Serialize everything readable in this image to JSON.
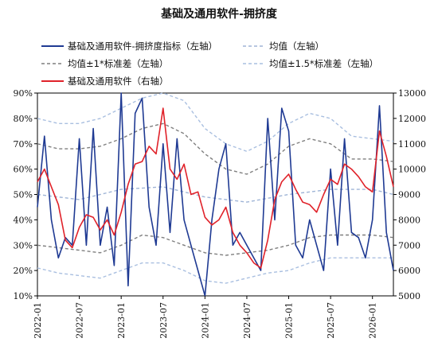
{
  "chart_data": {
    "type": "line",
    "title": "基础及通用软件-拥挤度",
    "xlabel": "",
    "ylabel": "",
    "y_left_lim": [
      0.1,
      0.9
    ],
    "y_left_ticks": [
      "10%",
      "20%",
      "30%",
      "40%",
      "50%",
      "60%",
      "70%",
      "80%",
      "90%"
    ],
    "y_right_lim": [
      5000,
      13000
    ],
    "y_right_ticks": [
      "5000",
      "6000",
      "7000",
      "8000",
      "9000",
      "10000",
      "11000",
      "12000",
      "13000"
    ],
    "x_ticks": [
      "2022-01",
      "2022-07",
      "2023-01",
      "2023-07",
      "2024-01",
      "2024-07",
      "2025-01",
      "2025-07",
      "2026-01"
    ],
    "x_range": [
      "2022-01",
      "2026-04"
    ],
    "grid": false,
    "legend_position": "top",
    "series": [
      {
        "name": "基础及通用软件-拥挤度指标（左轴）",
        "axis": "left",
        "color": "#1f3a93",
        "style": "solid",
        "x": [
          "2022-01",
          "2022-02",
          "2022-03",
          "2022-04",
          "2022-05",
          "2022-06",
          "2022-07",
          "2022-08",
          "2022-09",
          "2022-10",
          "2022-11",
          "2022-12",
          "2023-01",
          "2023-02",
          "2023-03",
          "2023-04",
          "2023-05",
          "2023-06",
          "2023-07",
          "2023-08",
          "2023-09",
          "2023-10",
          "2023-11",
          "2023-12",
          "2024-01",
          "2024-02",
          "2024-03",
          "2024-04",
          "2024-05",
          "2024-06",
          "2024-07",
          "2024-08",
          "2024-09",
          "2024-10",
          "2024-11",
          "2024-12",
          "2025-01",
          "2025-02",
          "2025-03",
          "2025-04",
          "2025-05",
          "2025-06",
          "2025-07",
          "2025-08",
          "2025-09",
          "2025-10",
          "2025-11",
          "2025-12",
          "2026-01",
          "2026-02",
          "2026-03",
          "2026-04"
        ],
        "values": [
          0.45,
          0.73,
          0.4,
          0.25,
          0.33,
          0.3,
          0.72,
          0.3,
          0.76,
          0.3,
          0.45,
          0.22,
          0.9,
          0.14,
          0.82,
          0.88,
          0.45,
          0.3,
          0.7,
          0.35,
          0.72,
          0.4,
          0.3,
          0.2,
          0.1,
          0.4,
          0.6,
          0.7,
          0.3,
          0.35,
          0.3,
          0.25,
          0.2,
          0.8,
          0.4,
          0.84,
          0.75,
          0.3,
          0.25,
          0.4,
          0.3,
          0.2,
          0.6,
          0.3,
          0.72,
          0.35,
          0.33,
          0.25,
          0.4,
          0.85,
          0.35,
          0.2
        ]
      },
      {
        "name": "均值（左轴）",
        "axis": "left",
        "color": "#9fb4d6",
        "style": "dashed",
        "x": [
          "2022-01",
          "2022-07",
          "2023-01",
          "2023-07",
          "2024-01",
          "2024-07",
          "2025-01",
          "2025-07",
          "2026-01",
          "2026-04"
        ],
        "values": [
          0.5,
          0.48,
          0.52,
          0.53,
          0.49,
          0.47,
          0.5,
          0.52,
          0.52,
          0.5
        ]
      },
      {
        "name": "均值±1*标准差（左轴）",
        "axis": "left",
        "color": "#7f7f7f",
        "style": "dashed",
        "x": [
          "2022-01",
          "2022-04",
          "2022-07",
          "2022-10",
          "2023-01",
          "2023-04",
          "2023-07",
          "2023-10",
          "2024-01",
          "2024-04",
          "2024-07",
          "2024-10",
          "2025-01",
          "2025-04",
          "2025-07",
          "2025-10",
          "2026-01",
          "2026-04"
        ],
        "values": [
          0.7,
          0.68,
          0.68,
          0.69,
          0.72,
          0.76,
          0.78,
          0.74,
          0.66,
          0.6,
          0.58,
          0.62,
          0.69,
          0.72,
          0.7,
          0.64,
          0.64,
          0.63
        ],
        "values_lower": [
          0.3,
          0.29,
          0.28,
          0.27,
          0.3,
          0.34,
          0.33,
          0.3,
          0.27,
          0.26,
          0.27,
          0.28,
          0.3,
          0.33,
          0.34,
          0.34,
          0.34,
          0.33
        ]
      },
      {
        "name": "均值±1.5*标准差（左轴）",
        "axis": "left",
        "color": "#a9bfe0",
        "style": "dashed",
        "x": [
          "2022-01",
          "2022-04",
          "2022-07",
          "2022-10",
          "2023-01",
          "2023-04",
          "2023-07",
          "2023-10",
          "2024-01",
          "2024-04",
          "2024-07",
          "2024-10",
          "2025-01",
          "2025-04",
          "2025-07",
          "2025-10",
          "2026-01",
          "2026-04"
        ],
        "values": [
          0.8,
          0.78,
          0.78,
          0.8,
          0.84,
          0.88,
          0.9,
          0.87,
          0.76,
          0.7,
          0.67,
          0.71,
          0.78,
          0.82,
          0.8,
          0.73,
          0.72,
          0.71
        ],
        "values_lower": [
          0.21,
          0.19,
          0.18,
          0.17,
          0.2,
          0.23,
          0.23,
          0.2,
          0.16,
          0.15,
          0.17,
          0.19,
          0.2,
          0.23,
          0.25,
          0.25,
          0.25,
          0.25
        ]
      },
      {
        "name": "基础及通用软件（右轴）",
        "axis": "right",
        "color": "#e0222a",
        "style": "solid",
        "x": [
          "2022-01",
          "2022-02",
          "2022-03",
          "2022-04",
          "2022-05",
          "2022-06",
          "2022-07",
          "2022-08",
          "2022-09",
          "2022-10",
          "2022-11",
          "2022-12",
          "2023-01",
          "2023-02",
          "2023-03",
          "2023-04",
          "2023-05",
          "2023-06",
          "2023-07",
          "2023-08",
          "2023-09",
          "2023-10",
          "2023-11",
          "2023-12",
          "2024-01",
          "2024-02",
          "2024-03",
          "2024-04",
          "2024-05",
          "2024-06",
          "2024-07",
          "2024-08",
          "2024-09",
          "2024-10",
          "2024-11",
          "2024-12",
          "2025-01",
          "2025-02",
          "2025-03",
          "2025-04",
          "2025-05",
          "2025-06",
          "2025-07",
          "2025-08",
          "2025-09",
          "2025-10",
          "2025-11",
          "2025-12",
          "2026-01",
          "2026-02",
          "2026-03",
          "2026-04"
        ],
        "values": [
          9500,
          10000,
          9300,
          8600,
          7200,
          6900,
          7700,
          8200,
          8100,
          7600,
          8000,
          7400,
          8300,
          9400,
          10200,
          10300,
          10900,
          10600,
          12400,
          10000,
          9600,
          10200,
          9000,
          9100,
          8100,
          7800,
          8000,
          8500,
          7500,
          7000,
          6700,
          6300,
          6100,
          7200,
          8800,
          9500,
          9800,
          9200,
          8700,
          8600,
          8300,
          9000,
          9600,
          9400,
          10200,
          10000,
          9700,
          9300,
          9100,
          11500,
          10500,
          9300
        ]
      }
    ]
  }
}
